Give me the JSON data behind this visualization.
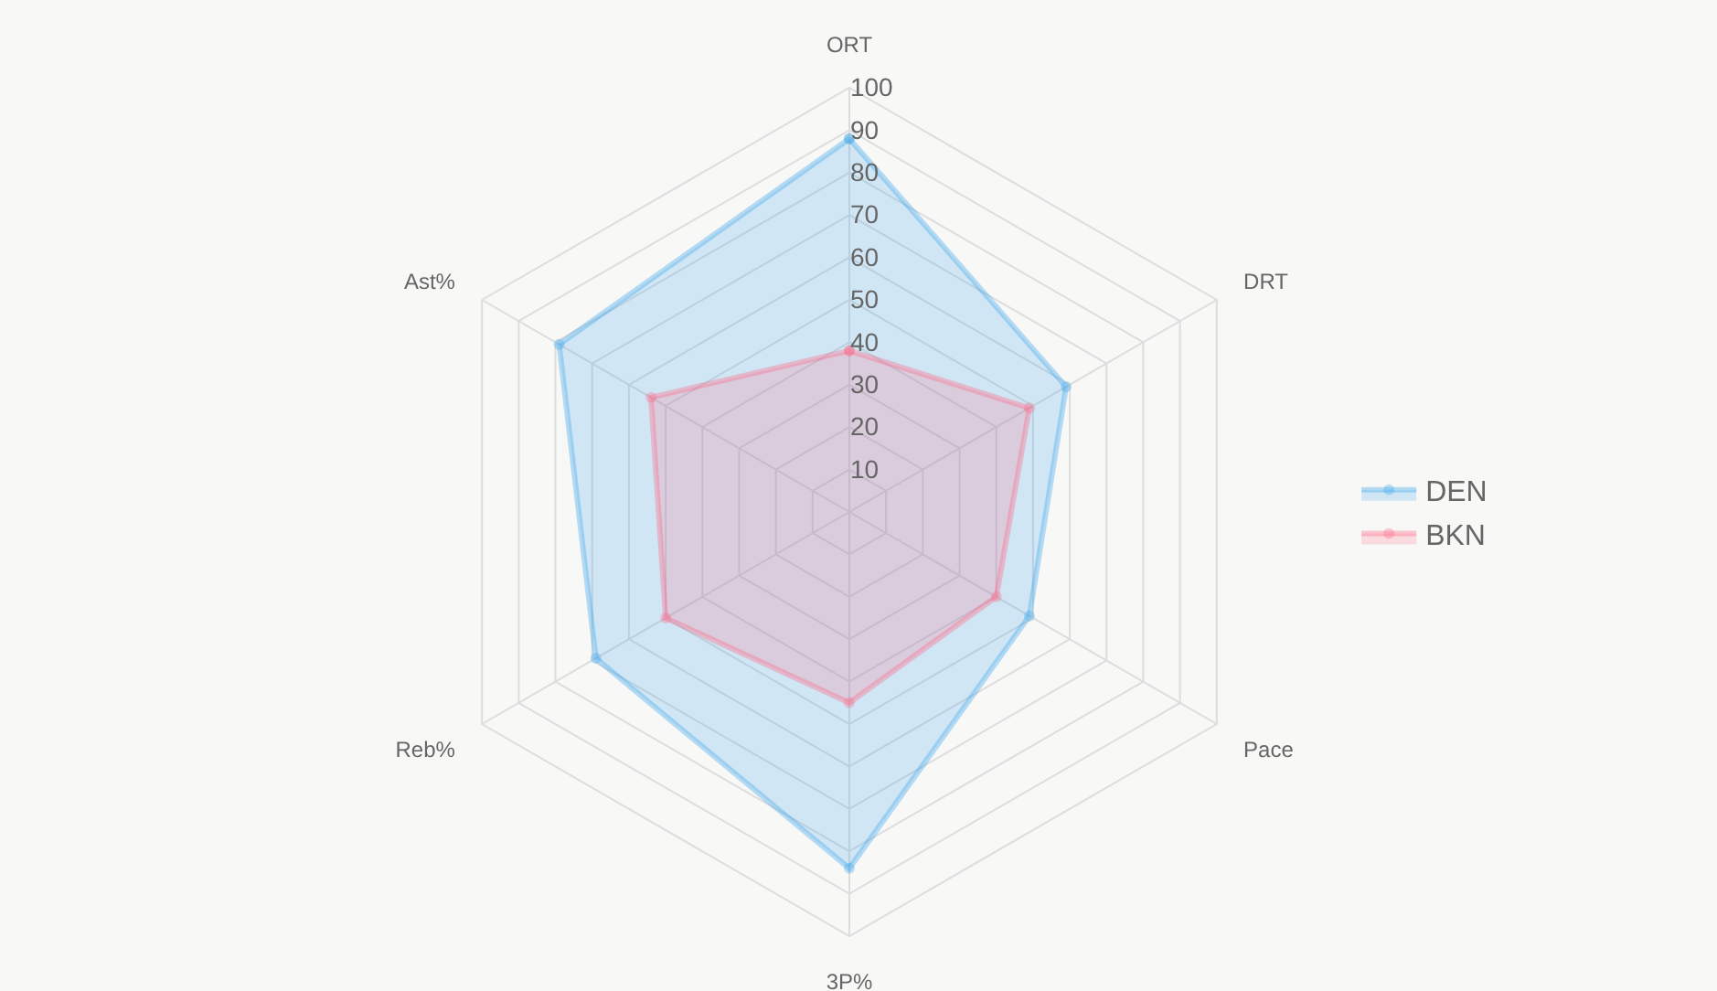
{
  "chart_data": {
    "type": "radar",
    "categories": [
      "ORT",
      "DRT",
      "Pace",
      "3P%",
      "Reb%",
      "Ast%"
    ],
    "series": [
      {
        "name": "DEN",
        "color": "#36a2eb",
        "values": [
          88,
          59,
          49,
          84,
          69,
          79
        ]
      },
      {
        "name": "BKN",
        "color": "#ff6384",
        "values": [
          38,
          49,
          40,
          45,
          50,
          54
        ]
      }
    ],
    "ylim": [
      0,
      100
    ],
    "yticks": [
      10,
      20,
      30,
      40,
      50,
      60,
      70,
      80,
      90,
      100
    ],
    "grid": true,
    "legend": "right",
    "marker": "circle"
  }
}
